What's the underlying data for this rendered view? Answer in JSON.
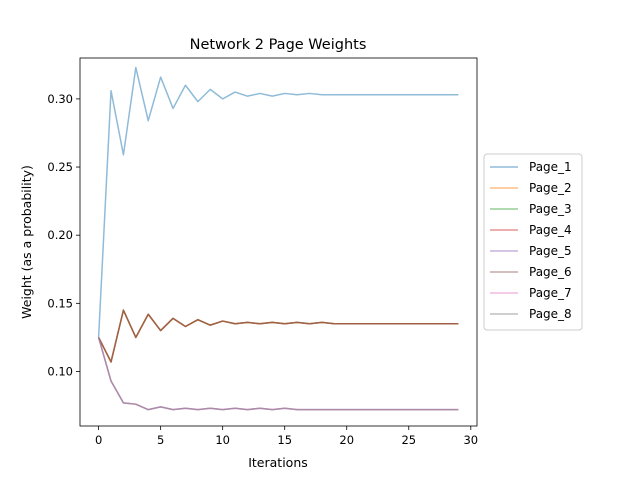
{
  "chart_data": {
    "type": "line",
    "title": "Network 2 Page Weights",
    "xlabel": "Iterations",
    "ylabel": "Weight (as a probability)",
    "xlim": [
      -1.5,
      30.5
    ],
    "ylim": [
      0.06,
      0.33
    ],
    "xticks": [
      0,
      5,
      10,
      15,
      20,
      25,
      30
    ],
    "xtick_labels": [
      "0",
      "5",
      "10",
      "15",
      "20",
      "25",
      "30"
    ],
    "yticks": [
      0.1,
      0.15,
      0.2,
      0.25,
      0.3
    ],
    "ytick_labels": [
      "0.10",
      "0.15",
      "0.20",
      "0.25",
      "0.30"
    ],
    "grid": false,
    "legend_position": "outside-right",
    "line_alpha": 0.5,
    "x": [
      0,
      1,
      2,
      3,
      4,
      5,
      6,
      7,
      8,
      9,
      10,
      11,
      12,
      13,
      14,
      15,
      16,
      17,
      18,
      19,
      20,
      21,
      22,
      23,
      24,
      25,
      26,
      27,
      28,
      29
    ],
    "series": [
      {
        "name": "Page_1",
        "color": "#1f77b4",
        "values": [
          0.125,
          0.306,
          0.259,
          0.323,
          0.284,
          0.316,
          0.293,
          0.31,
          0.298,
          0.307,
          0.3,
          0.305,
          0.302,
          0.304,
          0.302,
          0.304,
          0.303,
          0.304,
          0.303,
          0.303,
          0.303,
          0.303,
          0.303,
          0.303,
          0.303,
          0.303,
          0.303,
          0.303,
          0.303,
          0.303
        ]
      },
      {
        "name": "Page_2",
        "color": "#ff7f0e",
        "values": [
          0.125,
          0.107,
          0.145,
          0.125,
          0.142,
          0.13,
          0.139,
          0.133,
          0.138,
          0.134,
          0.137,
          0.135,
          0.136,
          0.135,
          0.136,
          0.135,
          0.136,
          0.135,
          0.136,
          0.135,
          0.135,
          0.135,
          0.135,
          0.135,
          0.135,
          0.135,
          0.135,
          0.135,
          0.135,
          0.135
        ]
      },
      {
        "name": "Page_3",
        "color": "#2ca02c",
        "values": [
          0.125,
          0.107,
          0.145,
          0.125,
          0.142,
          0.13,
          0.139,
          0.133,
          0.138,
          0.134,
          0.137,
          0.135,
          0.136,
          0.135,
          0.136,
          0.135,
          0.136,
          0.135,
          0.136,
          0.135,
          0.135,
          0.135,
          0.135,
          0.135,
          0.135,
          0.135,
          0.135,
          0.135,
          0.135,
          0.135
        ]
      },
      {
        "name": "Page_4",
        "color": "#d62728",
        "values": [
          0.125,
          0.107,
          0.145,
          0.125,
          0.142,
          0.13,
          0.139,
          0.133,
          0.138,
          0.134,
          0.137,
          0.135,
          0.136,
          0.135,
          0.136,
          0.135,
          0.136,
          0.135,
          0.136,
          0.135,
          0.135,
          0.135,
          0.135,
          0.135,
          0.135,
          0.135,
          0.135,
          0.135,
          0.135,
          0.135
        ]
      },
      {
        "name": "Page_5",
        "color": "#9467bd",
        "values": [
          0.125,
          0.093,
          0.077,
          0.076,
          0.072,
          0.074,
          0.072,
          0.073,
          0.072,
          0.073,
          0.072,
          0.073,
          0.072,
          0.073,
          0.072,
          0.073,
          0.072,
          0.072,
          0.072,
          0.072,
          0.072,
          0.072,
          0.072,
          0.072,
          0.072,
          0.072,
          0.072,
          0.072,
          0.072,
          0.072
        ]
      },
      {
        "name": "Page_6",
        "color": "#8c564b",
        "values": [
          0.125,
          0.107,
          0.145,
          0.125,
          0.142,
          0.13,
          0.139,
          0.133,
          0.138,
          0.134,
          0.137,
          0.135,
          0.136,
          0.135,
          0.136,
          0.135,
          0.136,
          0.135,
          0.136,
          0.135,
          0.135,
          0.135,
          0.135,
          0.135,
          0.135,
          0.135,
          0.135,
          0.135,
          0.135,
          0.135
        ]
      },
      {
        "name": "Page_7",
        "color": "#e377c2",
        "values": [
          0.125,
          0.093,
          0.077,
          0.076,
          0.072,
          0.074,
          0.072,
          0.073,
          0.072,
          0.073,
          0.072,
          0.073,
          0.072,
          0.073,
          0.072,
          0.073,
          0.072,
          0.072,
          0.072,
          0.072,
          0.072,
          0.072,
          0.072,
          0.072,
          0.072,
          0.072,
          0.072,
          0.072,
          0.072,
          0.072
        ]
      },
      {
        "name": "Page_8",
        "color": "#7f7f7f",
        "values": [
          0.125,
          0.093,
          0.077,
          0.076,
          0.072,
          0.074,
          0.072,
          0.073,
          0.072,
          0.073,
          0.072,
          0.073,
          0.072,
          0.073,
          0.072,
          0.073,
          0.072,
          0.072,
          0.072,
          0.072,
          0.072,
          0.072,
          0.072,
          0.072,
          0.072,
          0.072,
          0.072,
          0.072,
          0.072,
          0.072
        ]
      }
    ]
  }
}
